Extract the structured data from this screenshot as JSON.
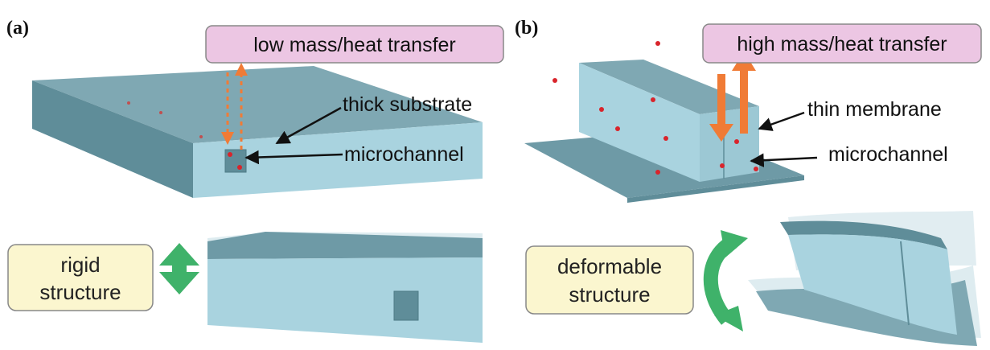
{
  "panels": {
    "a": {
      "label": "(a)",
      "transfer_box": "low mass/heat transfer",
      "callout_substrate": "thick substrate",
      "callout_channel": "microchannel",
      "structure_box_line1": "rigid",
      "structure_box_line2": "structure"
    },
    "b": {
      "label": "(b)",
      "transfer_box": "high mass/heat transfer",
      "callout_membrane": "thin membrane",
      "callout_channel": "microchannel",
      "structure_box_line1": "deformable",
      "structure_box_line2": "structure"
    }
  },
  "colors": {
    "block_light": "#a9d3df",
    "block_dark": "#5f8d99",
    "block_top": "#6e9aa6",
    "transfer_box_fill": "#ecc6e3",
    "structure_box_fill": "#fbf6cf",
    "arrow_orange": "#f07b36",
    "arrow_green": "#3fb26a",
    "particle_red": "#d9242b"
  }
}
